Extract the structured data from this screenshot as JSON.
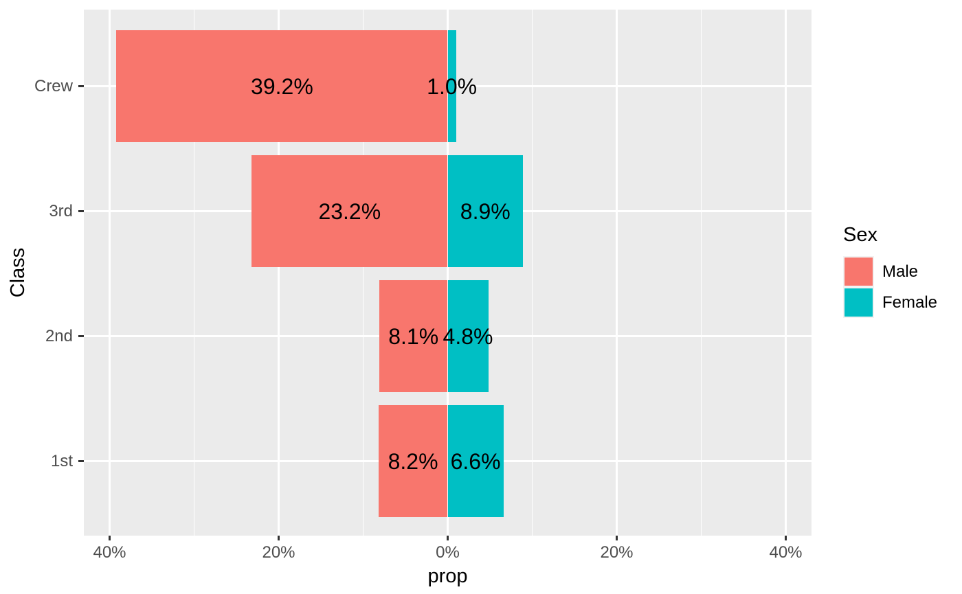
{
  "chart_data": {
    "type": "bar",
    "variant": "diverging-horizontal",
    "title": "",
    "xlabel": "prop",
    "ylabel": "Class",
    "categories": [
      "Crew",
      "3rd",
      "2nd",
      "1st"
    ],
    "series": [
      {
        "name": "Male",
        "color": "#F8766D",
        "side": "left",
        "values": [
          39.2,
          23.2,
          8.1,
          8.2
        ],
        "bar_labels": [
          "39.2%",
          "23.2%",
          "8.1%",
          "8.2%"
        ]
      },
      {
        "name": "Female",
        "color": "#00BFC4",
        "side": "right",
        "values": [
          1.0,
          8.9,
          4.8,
          6.6
        ],
        "bar_labels": [
          "1.0%",
          "8.9%",
          "4.8%",
          "6.6%"
        ]
      }
    ],
    "x_axis": {
      "unit": "percent",
      "range": [
        -43,
        43
      ],
      "major_ticks": [
        -40,
        -20,
        0,
        20,
        40
      ],
      "tick_labels": [
        "40%",
        "20%",
        "0%",
        "20%",
        "40%"
      ],
      "minor_gridlines": [
        -30,
        -10,
        10,
        30
      ],
      "grid": "on"
    },
    "y_axis": {
      "grid": "on"
    },
    "legend": {
      "title": "Sex",
      "position": "right",
      "entries": [
        {
          "label": "Male",
          "color": "#F8766D"
        },
        {
          "label": "Female",
          "color": "#00BFC4"
        }
      ]
    },
    "style": {
      "page_background": "#FFFFFF",
      "panel_background": "#EBEBEB",
      "gridline_color": "#FFFFFF",
      "axis_tick_color": "#333333",
      "tick_label_color": "#4D4D4D",
      "title_color": "#000000",
      "bar_label_color": "#000000",
      "legend_text_color": "#000000",
      "legend_key_background": "#F2F2F2"
    }
  }
}
